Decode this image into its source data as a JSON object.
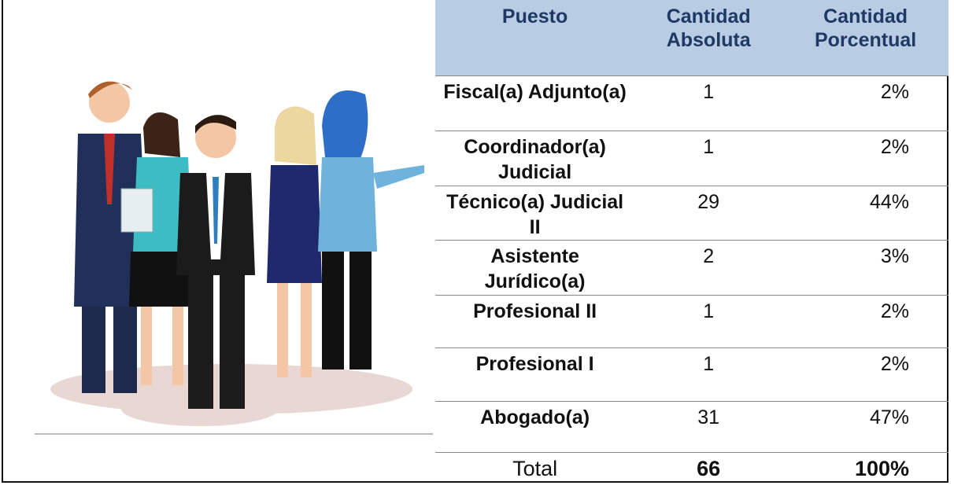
{
  "table": {
    "header": [
      "Puesto",
      "Cantidad Absoluta",
      "Cantidad Porcentual"
    ],
    "rows": [
      [
        "Fiscal(a) Adjunto(a)",
        1,
        "2%"
      ],
      [
        "Coordinador(a) Judicial",
        1,
        "2%"
      ],
      [
        "Técnico(a) Judicial II",
        29,
        "44%"
      ],
      [
        "Asistente Jurídico(a)",
        2,
        "3%"
      ],
      [
        "Profesional II",
        1,
        "2%"
      ],
      [
        "Profesional I",
        1,
        "2%"
      ],
      [
        "Abogado(a)",
        31,
        "47%"
      ]
    ],
    "total": [
      "Total",
      66,
      "100%"
    ]
  }
}
